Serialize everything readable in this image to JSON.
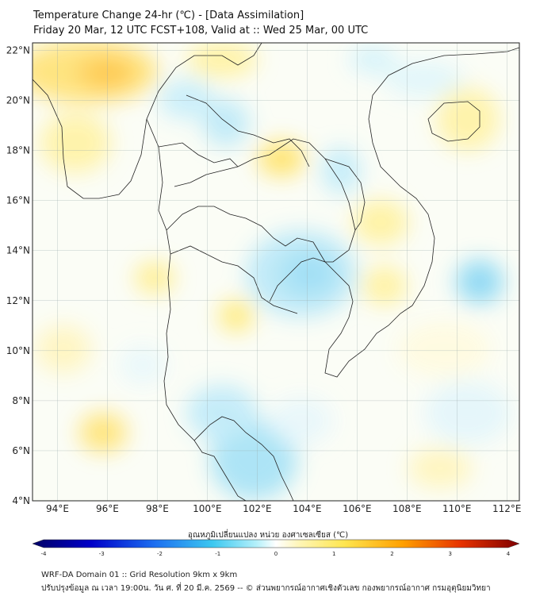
{
  "title": {
    "line1": "Temperature Change 24-hr (℃) - [Data Assimilation]",
    "line2": "Friday 20 Mar, 12 UTC FCST+108, Valid at :: Wed 25 Mar, 00 UTC"
  },
  "map": {
    "lon_range": [
      93,
      112.5
    ],
    "lat_range": [
      4,
      22.3
    ],
    "lon_ticks": [
      "94°E",
      "96°E",
      "98°E",
      "100°E",
      "102°E",
      "104°E",
      "106°E",
      "108°E",
      "110°E",
      "112°E"
    ],
    "lat_ticks": [
      "22°N",
      "20°N",
      "18°N",
      "16°N",
      "14°N",
      "12°N",
      "10°N",
      "8°N",
      "6°N",
      "4°N"
    ],
    "grid": true
  },
  "colorbar": {
    "label": "อุณหภูมิเปลี่ยนแปลง หน่วย องศาเซลเซียส (℃)",
    "ticks": [
      "-4",
      "-3",
      "-2",
      "-1",
      "0",
      "1",
      "2",
      "3",
      "4"
    ],
    "range": [
      -4,
      4
    ],
    "colors": [
      "#000066",
      "#0000c8",
      "#1c6ef0",
      "#3cc8f0",
      "#b4f0fa",
      "#ffffff",
      "#fff5b4",
      "#ffe650",
      "#ffa000",
      "#e63200",
      "#800000"
    ]
  },
  "footer": {
    "line1": "WRF-DA Domain 01 :: Grid Resolution 9km x 9km",
    "line2": "ปรับปรุงข้อมูล ณ เวลา 19:00น. วัน ศ. ที่ 20 มี.ค. 2569 -- © ส่วนพยากรณ์อากาศเชิงตัวเลข กองพยากรณ์อากาศ กรมอุตุนิยมวิทยา"
  }
}
